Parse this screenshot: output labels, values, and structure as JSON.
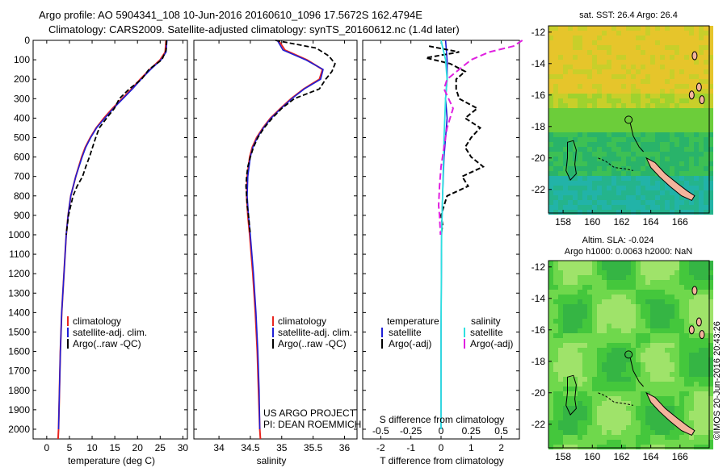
{
  "header": {
    "title_line1": "Argo profile: AO 5904341_108 10-Jun-2016 20160610_1096 17.5672S 162.4794E",
    "title_line2": "Climatology: CARS2009. Satellite-adjusted climatology: synTS_20160612.nc (1.4d later)"
  },
  "colors": {
    "climatology": "#e8251f",
    "satellite": "#1f1fd6",
    "argo": "#000000",
    "salinity_satellite": "#2ee0e0",
    "salinity_argo": "#e020e0",
    "land": "#f4b49c"
  },
  "panels": {
    "temperature": {
      "xlabel": "temperature (deg C)",
      "legend": [
        "climatology",
        "satellite-adj. clim.",
        "Argo(..raw -QC)"
      ]
    },
    "salinity": {
      "xlabel": "salinity",
      "legend": [
        "climatology",
        "satellite-adj. clim.",
        "Argo(..raw -QC)"
      ],
      "note_line1": "US ARGO PROJECT",
      "note_line2": "PI: DEAN ROEMMICH"
    },
    "difference": {
      "top_xlabel": "S difference from climatology",
      "xlabel": "T difference from climatology",
      "legend_temperature_title": "temperature",
      "legend_salinity_title": "salinity",
      "legend_satellite": "satellite",
      "legend_argo": "Argo(-adj)"
    }
  },
  "maps": {
    "sst_title": "sat. SST: 26.4 Argo: 26.4",
    "sla_title1": "Altim. SLA: -0.024",
    "sla_title2": "Argo h1000: 0.0063 h2000: NaN",
    "lat_ticks": [
      "-12",
      "-14",
      "-16",
      "-18",
      "-20",
      "-22"
    ],
    "lon_ticks": [
      "158",
      "160",
      "162",
      "164",
      "166"
    ]
  },
  "watermark": "©IMOS 20-Jun-2016 20:43:26",
  "chart_data": [
    {
      "type": "line",
      "title": "Argo profile: AO 5904341_108 10-Jun-2016 20160610_1096 17.5672S 162.4794E",
      "xlabel": "temperature (deg C)",
      "ylabel": "",
      "xlim": [
        -3,
        31
      ],
      "ylim": [
        2050,
        0
      ],
      "xticks": [
        0,
        5,
        10,
        15,
        20,
        25,
        30
      ],
      "yticks": [
        0,
        100,
        200,
        300,
        400,
        500,
        600,
        700,
        800,
        900,
        1000,
        1100,
        1200,
        1300,
        1400,
        1500,
        1600,
        1700,
        1800,
        1900,
        2000
      ],
      "series": [
        {
          "name": "climatology",
          "y": [
            0,
            60,
            100,
            150,
            200,
            250,
            300,
            350,
            400,
            450,
            500,
            550,
            600,
            700,
            800,
            900,
            1000,
            1200,
            1400,
            1600,
            1800,
            2000,
            2050
          ],
          "x": [
            26.3,
            26.1,
            25.0,
            22.7,
            20.6,
            18.7,
            16.6,
            14.5,
            12.6,
            10.9,
            9.6,
            8.5,
            7.7,
            6.4,
            5.3,
            4.7,
            4.3,
            3.8,
            3.3,
            3.0,
            2.8,
            2.6,
            2.5
          ]
        },
        {
          "name": "satellite-adj. clim.",
          "y": [
            0,
            60,
            100,
            150,
            200,
            250,
            300,
            350,
            400,
            450,
            500,
            550,
            600,
            700,
            800,
            900,
            1000,
            1200,
            1400,
            1600,
            1800,
            2000
          ],
          "x": [
            26.5,
            26.3,
            25.2,
            22.9,
            20.8,
            18.9,
            16.8,
            14.7,
            12.8,
            11.0,
            9.7,
            8.6,
            7.8,
            6.4,
            5.3,
            4.7,
            4.3,
            3.8,
            3.3,
            3.0,
            2.8,
            2.6
          ]
        },
        {
          "name": "Argo(..raw -QC)",
          "y": [
            0,
            50,
            100,
            150,
            200,
            250,
            300,
            350,
            400,
            450,
            500,
            550,
            600,
            650,
            700,
            750,
            800,
            900,
            1000
          ],
          "x": [
            26.4,
            26.3,
            25.4,
            22.5,
            20.9,
            18.2,
            16.0,
            14.9,
            13.2,
            11.6,
            10.8,
            10.1,
            9.4,
            8.6,
            7.9,
            6.7,
            5.8,
            4.8,
            4.3
          ]
        }
      ]
    },
    {
      "type": "line",
      "xlabel": "salinity",
      "xlim": [
        33.6,
        36.2
      ],
      "ylim": [
        2050,
        0
      ],
      "xticks": [
        34,
        34.5,
        35,
        35.5,
        36
      ],
      "series": [
        {
          "name": "climatology",
          "y": [
            0,
            50,
            100,
            150,
            200,
            250,
            300,
            350,
            400,
            450,
            500,
            550,
            600,
            700,
            800,
            900,
            1000,
            1200,
            1400,
            1600,
            1800,
            2000,
            2050
          ],
          "x": [
            34.95,
            35.05,
            35.4,
            35.65,
            35.6,
            35.35,
            35.15,
            34.98,
            34.82,
            34.7,
            34.6,
            34.53,
            34.49,
            34.45,
            34.44,
            34.46,
            34.49,
            34.54,
            34.58,
            34.61,
            34.63,
            34.65,
            34.66
          ]
        },
        {
          "name": "satellite-adj. clim.",
          "y": [
            0,
            50,
            100,
            150,
            200,
            250,
            300,
            350,
            400,
            450,
            500,
            550,
            600,
            700,
            800,
            900,
            1000,
            1200,
            1400,
            1600,
            1800,
            2000
          ],
          "x": [
            34.93,
            35.02,
            35.38,
            35.66,
            35.62,
            35.36,
            35.16,
            34.99,
            34.83,
            34.71,
            34.61,
            34.54,
            34.5,
            34.46,
            34.45,
            34.47,
            34.5,
            34.55,
            34.59,
            34.62,
            34.64,
            34.65
          ]
        },
        {
          "name": "Argo(..raw -QC)",
          "y": [
            0,
            40,
            80,
            120,
            160,
            200,
            250,
            300,
            350,
            400,
            450,
            500,
            550,
            600,
            650,
            700,
            750,
            800,
            850,
            900,
            1000
          ],
          "x": [
            34.9,
            35.55,
            35.75,
            35.85,
            35.8,
            35.7,
            35.6,
            35.2,
            35.0,
            34.85,
            34.72,
            34.62,
            34.55,
            34.5,
            34.46,
            34.44,
            34.43,
            34.44,
            34.45,
            34.47,
            34.5
          ]
        }
      ]
    },
    {
      "type": "line",
      "xlabel": "T difference from climatology",
      "top_xlabel": "S difference from climatology",
      "xlim": [
        -2.6,
        2.6
      ],
      "ylim": [
        2050,
        0
      ],
      "xticks": [
        -2,
        -1,
        0,
        1,
        2
      ],
      "top_xtick_labels": [
        "-0.5",
        "-0.25",
        "0",
        "0.25",
        "0.5"
      ],
      "series": [
        {
          "name": "temperature satellite",
          "y": [
            0,
            100,
            200,
            300,
            400,
            600,
            800,
            1000,
            1500,
            2000
          ],
          "x": [
            0.15,
            0.2,
            0.2,
            0.15,
            0.2,
            0.1,
            0.05,
            0.02,
            0.0,
            0.0
          ]
        },
        {
          "name": "temperature Argo(-adj)",
          "y": [
            30,
            60,
            90,
            120,
            160,
            200,
            250,
            300,
            350,
            400,
            450,
            500,
            550,
            600,
            650,
            700,
            750,
            800,
            850,
            900,
            950,
            1000
          ],
          "x": [
            -0.4,
            0.6,
            -0.5,
            0.3,
            0.8,
            0.5,
            0.5,
            0.6,
            1.2,
            0.8,
            1.3,
            1.0,
            0.8,
            1.0,
            1.4,
            0.7,
            0.9,
            0.2,
            0.1,
            0.0,
            0.05,
            0.0
          ]
        },
        {
          "name": "salinity satellite",
          "y": [
            0,
            100,
            200,
            300,
            500,
            800,
            1000,
            1500,
            2000
          ],
          "x": [
            0.0,
            0.15,
            0.2,
            0.15,
            0.1,
            0.05,
            0.02,
            0.0,
            0.0
          ]
        },
        {
          "name": "salinity Argo(-adj)",
          "y": [
            0,
            30,
            60,
            100,
            150,
            200,
            250,
            350,
            450,
            550,
            650,
            750,
            850,
            900,
            1000
          ],
          "x": [
            2.7,
            2.4,
            1.6,
            1.0,
            0.6,
            0.2,
            0.1,
            0.4,
            0.2,
            0.1,
            0.0,
            -0.05,
            -0.08,
            -0.05,
            -0.02
          ]
        }
      ]
    }
  ]
}
